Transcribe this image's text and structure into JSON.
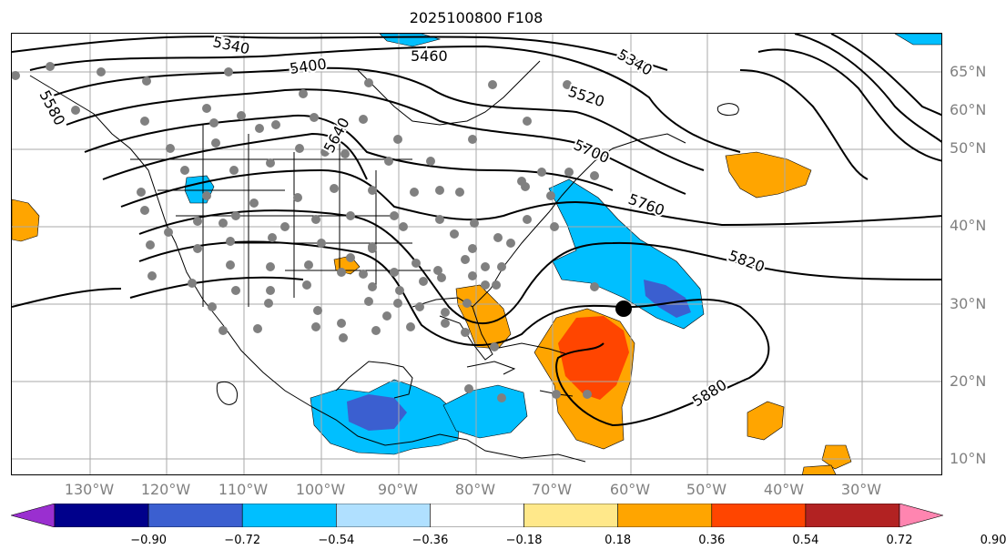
{
  "title": "2025100800 F108",
  "lat_labels": [
    "65°N",
    "60°N",
    "50°N",
    "40°N",
    "30°N",
    "20°N",
    "10°N"
  ],
  "lon_labels": [
    "130°W",
    "120°W",
    "110°W",
    "100°W",
    "90°W",
    "80°W",
    "70°W",
    "60°W",
    "50°W",
    "40°W",
    "30°W"
  ],
  "contour_labels": [
    "5340",
    "5400",
    "5460",
    "5520",
    "5640",
    "5340",
    "5700",
    "5760",
    "5820",
    "5880",
    "5580"
  ],
  "colorbar": {
    "colors": [
      "#9a2fd0",
      "#00008b",
      "#3b5fd0",
      "#00bfff",
      "#b0e0ff",
      "#ffffff",
      "#ffe88a",
      "#ffa500",
      "#ff4500",
      "#b22222",
      "#ff85b0"
    ],
    "ticks": [
      "−0.90",
      "−0.72",
      "−0.54",
      "−0.36",
      "−0.18",
      "0.18",
      "0.36",
      "0.54",
      "0.72",
      "0.90"
    ]
  },
  "map_data": {
    "field": "500 hPa geopotential height (contours) with shaded anomaly",
    "contour_values": [
      5340,
      5400,
      5460,
      5520,
      5580,
      5640,
      5700,
      5760,
      5820,
      5880
    ],
    "marker": "black-dot"
  }
}
